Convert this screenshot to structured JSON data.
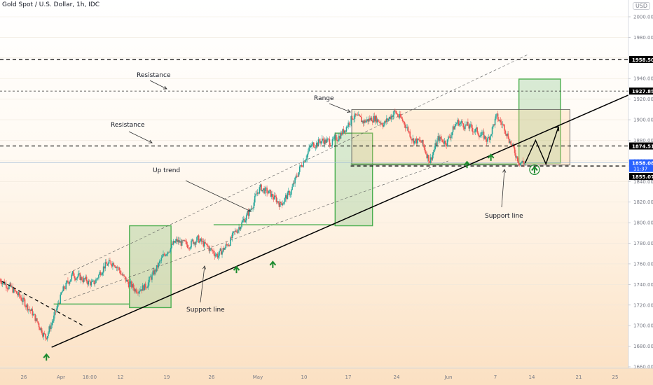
{
  "title": "Gold Spot / U.S. Dollar, 1h, IDC",
  "currency_badge": "USD",
  "colors": {
    "up_candle": "#26a69a",
    "down_candle": "#ef5350",
    "box_green": "#4caf50",
    "arrow_green": "#1b8a2e",
    "axis_text": "#787b86"
  },
  "annotations": {
    "resistance_top": "Resistance",
    "resistance_mid": "Resistance",
    "range": "Range",
    "up_trend": "Up trend",
    "support_line_left": "Support line",
    "support_line_right": "Support line"
  },
  "price_badges": {
    "p1958": "1958.50",
    "p1927": "1927.85",
    "p1874": "1874.51",
    "p1858": "1858.08",
    "countdown": "11:37",
    "p1855": "1855.07"
  },
  "chart_data": {
    "type": "candlestick",
    "title": "Gold Spot / U.S. Dollar, 1h, IDC",
    "ylim": [
      1650,
      2020
    ],
    "y_ticks": [
      1660,
      1680,
      1700,
      1720,
      1740,
      1760,
      1780,
      1800,
      1820,
      1840,
      1860,
      1880,
      1900,
      1920,
      1940,
      1960,
      1980,
      2000
    ],
    "x_tick_labels": [
      "26",
      "Apr",
      "18:00",
      "12",
      "19",
      "26",
      "May",
      "10",
      "17",
      "24",
      "Jun",
      "7",
      "14",
      "21",
      "25"
    ],
    "horizontal_levels": [
      1958.5,
      1927.85,
      1874.51,
      1855.07
    ],
    "current_price": 1858.08,
    "price_path": [
      [
        -1,
        1745
      ],
      [
        4,
        1737
      ],
      [
        9,
        1727
      ],
      [
        14,
        1714
      ],
      [
        19,
        1696
      ],
      [
        21,
        1688
      ],
      [
        25,
        1708
      ],
      [
        29,
        1733
      ],
      [
        34,
        1750
      ],
      [
        39,
        1745
      ],
      [
        44,
        1740
      ],
      [
        49,
        1758
      ],
      [
        54,
        1762
      ],
      [
        59,
        1745
      ],
      [
        64,
        1735
      ],
      [
        69,
        1738
      ],
      [
        74,
        1754
      ],
      [
        79,
        1772
      ],
      [
        84,
        1782
      ],
      [
        89,
        1778
      ],
      [
        94,
        1784
      ],
      [
        99,
        1776
      ],
      [
        104,
        1768
      ],
      [
        109,
        1780
      ],
      [
        114,
        1796
      ],
      [
        119,
        1810
      ],
      [
        124,
        1834
      ],
      [
        129,
        1828
      ],
      [
        134,
        1818
      ],
      [
        139,
        1830
      ],
      [
        144,
        1856
      ],
      [
        149,
        1875
      ],
      [
        154,
        1880
      ],
      [
        159,
        1878
      ],
      [
        164,
        1888
      ],
      [
        169,
        1904
      ],
      [
        174,
        1898
      ],
      [
        179,
        1902
      ],
      [
        184,
        1896
      ],
      [
        189,
        1908
      ],
      [
        194,
        1896
      ],
      [
        198,
        1880
      ],
      [
        202,
        1878
      ],
      [
        206,
        1860
      ],
      [
        210,
        1882
      ],
      [
        214,
        1878
      ],
      [
        219,
        1898
      ],
      [
        224,
        1894
      ],
      [
        229,
        1888
      ],
      [
        234,
        1880
      ],
      [
        238,
        1903
      ],
      [
        242,
        1892
      ],
      [
        246,
        1872
      ],
      [
        249,
        1859
      ],
      [
        252,
        1858
      ]
    ],
    "projection": [
      [
        252,
        1858
      ],
      [
        257,
        1880
      ],
      [
        262,
        1857
      ],
      [
        268,
        1893
      ]
    ]
  }
}
